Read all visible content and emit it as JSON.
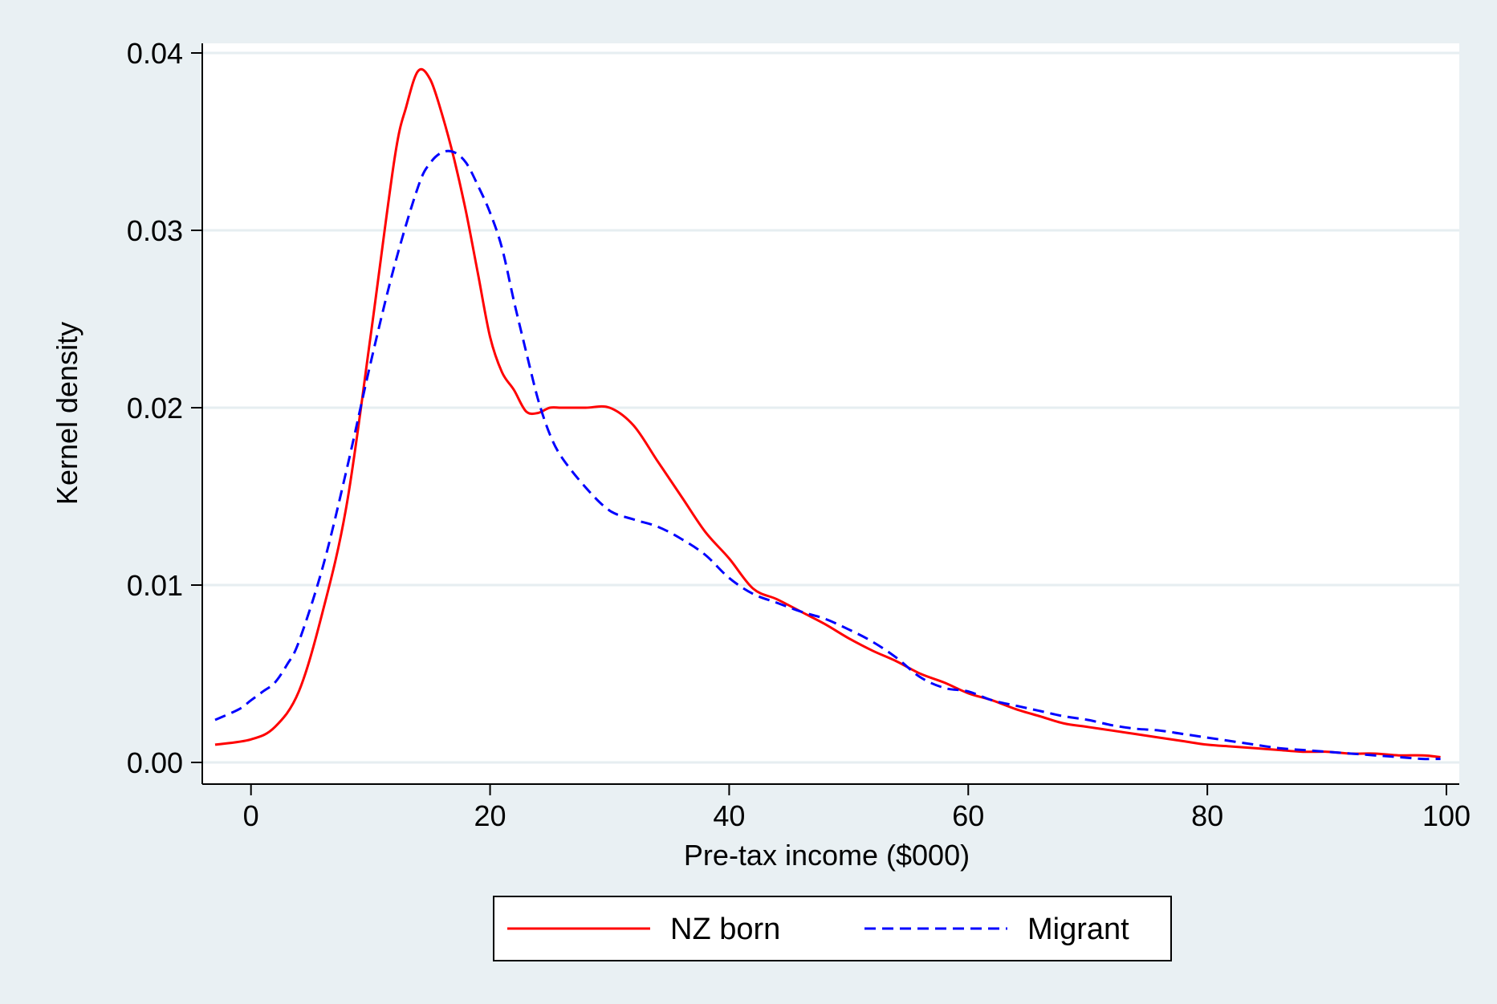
{
  "chart_data": {
    "type": "line",
    "title": "",
    "xlabel": "Pre-tax income ($000)",
    "ylabel": "Kernel density",
    "xlim": [
      -3,
      100
    ],
    "ylim": [
      0,
      0.04
    ],
    "x_ticks": [
      0,
      20,
      40,
      60,
      80,
      100
    ],
    "x_tick_labels": [
      "0",
      "20",
      "40",
      "60",
      "80",
      "100"
    ],
    "y_ticks": [
      0,
      0.01,
      0.02,
      0.03,
      0.04
    ],
    "y_tick_labels": [
      "0.00",
      "0.01",
      "0.02",
      "0.03",
      "0.04"
    ],
    "grid": "horizontal",
    "legend_position": "bottom",
    "series": [
      {
        "name": "NZ born",
        "color": "#ff0000",
        "dash": "solid",
        "x": [
          -3,
          0,
          2,
          4,
          6,
          8,
          10,
          12,
          13,
          14,
          15,
          16,
          17,
          18,
          19,
          20,
          21,
          22,
          23,
          24,
          25,
          26,
          28,
          30,
          32,
          34,
          36,
          38,
          40,
          42,
          44,
          46,
          48,
          50,
          52,
          54,
          56,
          58,
          60,
          62,
          64,
          66,
          68,
          70,
          72,
          74,
          76,
          78,
          80,
          82,
          84,
          86,
          88,
          90,
          92,
          94,
          96,
          98,
          99.5
        ],
        "y": [
          0.001,
          0.0013,
          0.002,
          0.004,
          0.0085,
          0.0145,
          0.024,
          0.034,
          0.037,
          0.039,
          0.0385,
          0.0365,
          0.034,
          0.031,
          0.0275,
          0.024,
          0.022,
          0.021,
          0.0198,
          0.0197,
          0.02,
          0.02,
          0.02,
          0.02,
          0.019,
          0.017,
          0.015,
          0.013,
          0.0115,
          0.0098,
          0.0092,
          0.0085,
          0.0078,
          0.007,
          0.0063,
          0.0057,
          0.005,
          0.0045,
          0.0039,
          0.0035,
          0.003,
          0.0026,
          0.0022,
          0.002,
          0.0018,
          0.0016,
          0.0014,
          0.0012,
          0.001,
          0.0009,
          0.0008,
          0.0007,
          0.0006,
          0.0006,
          0.0005,
          0.0005,
          0.0004,
          0.0004,
          0.0003
        ]
      },
      {
        "name": "Migrant",
        "color": "#0000ff",
        "dash": "dashed",
        "x": [
          -3,
          -1,
          0,
          1,
          2,
          3,
          4,
          6,
          8,
          10,
          12,
          14,
          15,
          16,
          17,
          18,
          19,
          20,
          21,
          22,
          23,
          24,
          25,
          26,
          28,
          30,
          32,
          34,
          36,
          38,
          40,
          42,
          44,
          46,
          48,
          50,
          52,
          54,
          56,
          58,
          60,
          62,
          64,
          66,
          68,
          70,
          72,
          74,
          76,
          78,
          80,
          82,
          84,
          86,
          88,
          90,
          92,
          94,
          96,
          98,
          99.5
        ],
        "y": [
          0.0024,
          0.003,
          0.0035,
          0.004,
          0.0045,
          0.0055,
          0.0068,
          0.011,
          0.0165,
          0.0225,
          0.028,
          0.0325,
          0.0338,
          0.0344,
          0.0344,
          0.0338,
          0.0325,
          0.031,
          0.029,
          0.026,
          0.0232,
          0.0205,
          0.0185,
          0.0172,
          0.0155,
          0.0142,
          0.0137,
          0.0133,
          0.0126,
          0.0117,
          0.0104,
          0.0095,
          0.009,
          0.0085,
          0.0081,
          0.0075,
          0.0068,
          0.0059,
          0.0048,
          0.0042,
          0.004,
          0.0035,
          0.0032,
          0.0029,
          0.0026,
          0.0024,
          0.0021,
          0.0019,
          0.0018,
          0.0016,
          0.0014,
          0.0012,
          0.001,
          0.0008,
          0.0007,
          0.0006,
          0.0005,
          0.0004,
          0.0003,
          0.0002,
          0.0002
        ]
      }
    ]
  }
}
